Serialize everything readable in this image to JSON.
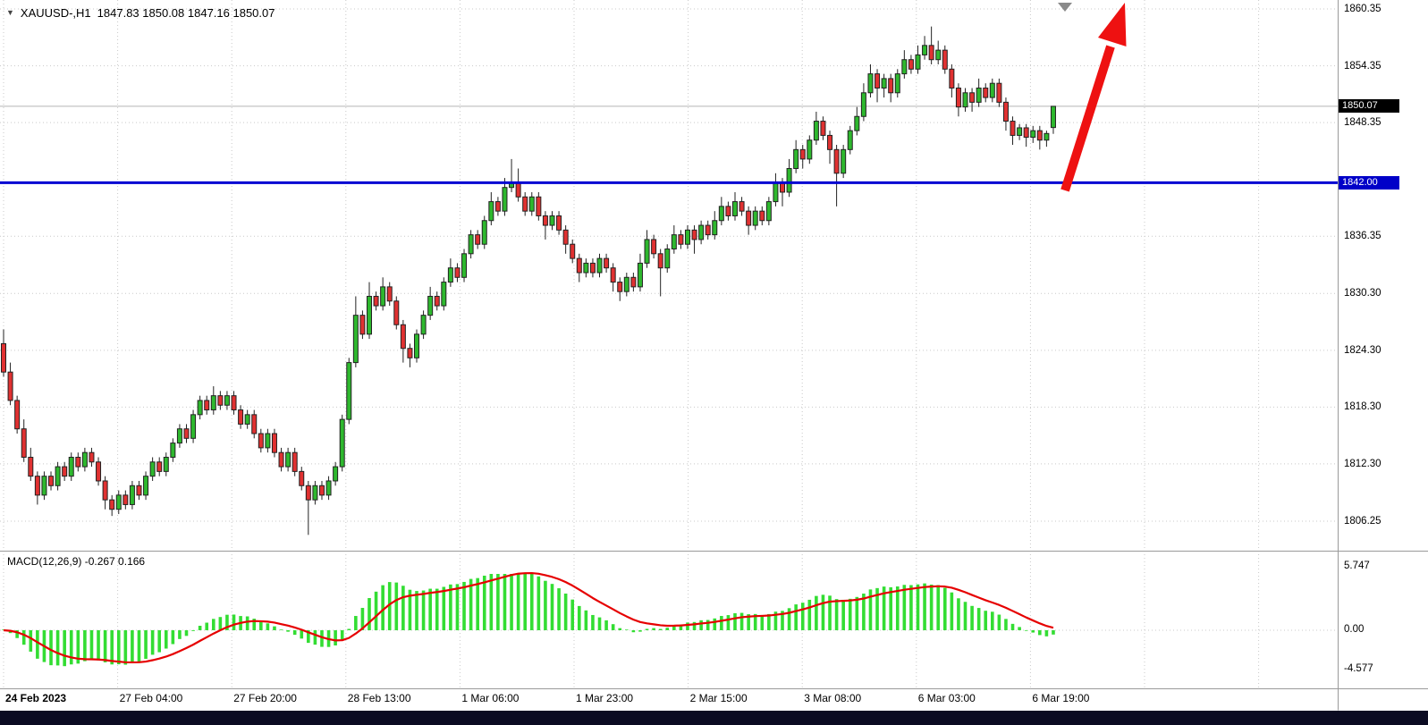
{
  "header": {
    "dropdown_icon": "▼",
    "symbol": "XAUUSD-,H1",
    "ohlc": "1847.83 1850.08 1847.16 1850.07"
  },
  "macd": {
    "label": "MACD(12,26,9) -0.267 0.166"
  },
  "price_axis": {
    "ticks": [
      1860.35,
      1854.35,
      1848.35,
      1836.35,
      1830.3,
      1824.3,
      1818.3,
      1812.3,
      1806.25
    ],
    "current_text": "1850.07",
    "level_text": "1842.00"
  },
  "time_axis": {
    "ticks": [
      "24 Feb 2023",
      "27 Feb 04:00",
      "27 Feb 20:00",
      "28 Feb 13:00",
      "1 Mar 06:00",
      "1 Mar 23:00",
      "2 Mar 15:00",
      "3 Mar 08:00",
      "6 Mar 03:00",
      "6 Mar 19:00"
    ]
  },
  "macd_axis": {
    "ticks": [
      "5.747",
      "0.00",
      "-4.577"
    ]
  },
  "colors": {
    "up": "#2eb82e",
    "down": "#e03131",
    "wick": "#222222",
    "hline": "#0000d2",
    "signal": "#e60000",
    "histogram": "#33dd33",
    "grid": "#c9c9c9",
    "badge_current_bg": "#000000",
    "badge_level_bg": "#0000c8",
    "arrow": "#ee1111",
    "bottom_strip": "#0b0b22",
    "current_price_line": "#b4b4b4"
  },
  "chart_data": [
    {
      "type": "candlestick",
      "symbol": "XAUUSD-",
      "timeframe": "H1",
      "current_bar": {
        "open": 1847.83,
        "high": 1850.08,
        "low": 1847.16,
        "close": 1850.07
      },
      "y_axis_ticks": [
        1860.35,
        1854.35,
        1848.35,
        1836.35,
        1830.3,
        1824.3,
        1818.3,
        1812.3,
        1806.25
      ],
      "x_axis_ticks": [
        "24 Feb 2023",
        "27 Feb 04:00",
        "27 Feb 20:00",
        "28 Feb 13:00",
        "1 Mar 06:00",
        "1 Mar 23:00",
        "2 Mar 15:00",
        "3 Mar 08:00",
        "6 Mar 03:00",
        "6 Mar 19:00"
      ],
      "drawings": [
        {
          "type": "horizontal_line",
          "price": 1842.0
        },
        {
          "type": "arrow_up"
        }
      ],
      "candles": [
        [
          1825,
          1826.5,
          1821.5,
          1822
        ],
        [
          1822,
          1823,
          1818.5,
          1819
        ],
        [
          1819,
          1819.5,
          1815.5,
          1816
        ],
        [
          1816,
          1817,
          1812.5,
          1813
        ],
        [
          1813,
          1814,
          1810.5,
          1811
        ],
        [
          1811,
          1811.5,
          1808,
          1809
        ],
        [
          1809,
          1811.5,
          1808.5,
          1811
        ],
        [
          1811,
          1811.5,
          1809.5,
          1810
        ],
        [
          1810,
          1812.5,
          1809.5,
          1812
        ],
        [
          1812,
          1812.5,
          1810.5,
          1811
        ],
        [
          1811,
          1813.5,
          1810.5,
          1813
        ],
        [
          1813,
          1813.5,
          1811.5,
          1812
        ],
        [
          1812,
          1814,
          1811.5,
          1813.5
        ],
        [
          1813.5,
          1814,
          1812,
          1812.5
        ],
        [
          1812.5,
          1813,
          1810,
          1810.5
        ],
        [
          1810.5,
          1811,
          1807.5,
          1808.5
        ],
        [
          1808.5,
          1809,
          1806.8,
          1807.5
        ],
        [
          1807.5,
          1809.5,
          1807,
          1809
        ],
        [
          1809,
          1809.5,
          1807.5,
          1808
        ],
        [
          1808,
          1810.5,
          1807.5,
          1810
        ],
        [
          1810,
          1810.5,
          1808.5,
          1809
        ],
        [
          1809,
          1811.5,
          1808.5,
          1811
        ],
        [
          1811,
          1813,
          1810.5,
          1812.5
        ],
        [
          1812.5,
          1813,
          1811,
          1811.5
        ],
        [
          1811.5,
          1813.5,
          1811,
          1813
        ],
        [
          1813,
          1815,
          1812.5,
          1814.5
        ],
        [
          1814.5,
          1816.5,
          1814,
          1816
        ],
        [
          1816,
          1816.5,
          1814.5,
          1815
        ],
        [
          1815,
          1818,
          1814.5,
          1817.5
        ],
        [
          1817.5,
          1819.5,
          1817,
          1819
        ],
        [
          1819,
          1819.5,
          1817.5,
          1818
        ],
        [
          1818,
          1820.5,
          1817.5,
          1819.5
        ],
        [
          1819.5,
          1820,
          1818,
          1818.5
        ],
        [
          1818.5,
          1820,
          1818,
          1819.5
        ],
        [
          1819.5,
          1820,
          1817.5,
          1818
        ],
        [
          1818,
          1818.5,
          1816,
          1816.5
        ],
        [
          1816.5,
          1818,
          1816,
          1817.5
        ],
        [
          1817.5,
          1818,
          1815,
          1815.5
        ],
        [
          1815.5,
          1816,
          1813.5,
          1814
        ],
        [
          1814,
          1816,
          1813.5,
          1815.5
        ],
        [
          1815.5,
          1816,
          1813,
          1813.5
        ],
        [
          1813.5,
          1814,
          1811.5,
          1812
        ],
        [
          1812,
          1814,
          1811.5,
          1813.5
        ],
        [
          1813.5,
          1814,
          1811,
          1811.5
        ],
        [
          1811.5,
          1812,
          1809.5,
          1810
        ],
        [
          1810,
          1810.5,
          1804.8,
          1808.5
        ],
        [
          1808.5,
          1810.5,
          1808,
          1810
        ],
        [
          1810,
          1810.5,
          1808.5,
          1809
        ],
        [
          1809,
          1811,
          1808.5,
          1810.5
        ],
        [
          1810.5,
          1812.5,
          1810,
          1812
        ],
        [
          1812,
          1817.5,
          1811.5,
          1817
        ],
        [
          1817,
          1823.5,
          1816.5,
          1823
        ],
        [
          1823,
          1830,
          1822.5,
          1828
        ],
        [
          1828,
          1828.5,
          1825.5,
          1826
        ],
        [
          1826,
          1831.5,
          1825.5,
          1830
        ],
        [
          1830,
          1830.5,
          1828.5,
          1829
        ],
        [
          1829,
          1832,
          1828.5,
          1831
        ],
        [
          1831,
          1831.5,
          1829,
          1829.5
        ],
        [
          1829.5,
          1830,
          1826.5,
          1827
        ],
        [
          1827,
          1827.5,
          1823,
          1824.5
        ],
        [
          1824.5,
          1825,
          1822.5,
          1823.5
        ],
        [
          1823.5,
          1826.5,
          1823,
          1826
        ],
        [
          1826,
          1828.5,
          1825.5,
          1828
        ],
        [
          1828,
          1831,
          1827.5,
          1830
        ],
        [
          1830,
          1830.5,
          1828.5,
          1829
        ],
        [
          1829,
          1832,
          1828.5,
          1831.5
        ],
        [
          1831.5,
          1834,
          1831,
          1833
        ],
        [
          1833,
          1833.5,
          1831.5,
          1832
        ],
        [
          1832,
          1835,
          1831.5,
          1834.5
        ],
        [
          1834.5,
          1837,
          1834,
          1836.5
        ],
        [
          1836.5,
          1837,
          1835,
          1835.5
        ],
        [
          1835.5,
          1838.5,
          1835,
          1838
        ],
        [
          1838,
          1841,
          1837.5,
          1840
        ],
        [
          1840,
          1840.5,
          1838.5,
          1839
        ],
        [
          1839,
          1842.5,
          1838.5,
          1841.5
        ],
        [
          1841.5,
          1844.5,
          1841,
          1842
        ],
        [
          1842,
          1843.5,
          1840,
          1840.5
        ],
        [
          1840.5,
          1841,
          1838.5,
          1839
        ],
        [
          1839,
          1841,
          1838.5,
          1840.5
        ],
        [
          1840.5,
          1841,
          1838,
          1838.5
        ],
        [
          1838.5,
          1839,
          1836,
          1837.5
        ],
        [
          1837.5,
          1839,
          1837,
          1838.5
        ],
        [
          1838.5,
          1839,
          1836.5,
          1837
        ],
        [
          1837,
          1837.5,
          1834.5,
          1835.5
        ],
        [
          1835.5,
          1836,
          1833.5,
          1834
        ],
        [
          1834,
          1834.5,
          1831.5,
          1832.5
        ],
        [
          1832.5,
          1834,
          1832,
          1833.5
        ],
        [
          1833.5,
          1834,
          1832,
          1832.5
        ],
        [
          1832.5,
          1834.5,
          1832,
          1834
        ],
        [
          1834,
          1834.5,
          1832.5,
          1833
        ],
        [
          1833,
          1833.5,
          1830.5,
          1831.5
        ],
        [
          1831.5,
          1832,
          1829.5,
          1830.5
        ],
        [
          1830.5,
          1832.5,
          1830,
          1832
        ],
        [
          1832,
          1832.5,
          1830.5,
          1831
        ],
        [
          1831,
          1834.5,
          1830.5,
          1833.5
        ],
        [
          1833.5,
          1837,
          1833,
          1836
        ],
        [
          1836,
          1836.5,
          1834,
          1834.5
        ],
        [
          1834.5,
          1835,
          1830,
          1833
        ],
        [
          1833,
          1835.5,
          1832.5,
          1835
        ],
        [
          1835,
          1837.5,
          1834.5,
          1836.5
        ],
        [
          1836.5,
          1837,
          1835,
          1835.5
        ],
        [
          1835.5,
          1837.5,
          1835,
          1837
        ],
        [
          1837,
          1837.5,
          1834.5,
          1836
        ],
        [
          1836,
          1838,
          1835.5,
          1837.5
        ],
        [
          1837.5,
          1838,
          1836,
          1836.5
        ],
        [
          1836.5,
          1839,
          1836,
          1838
        ],
        [
          1838,
          1840.5,
          1837.5,
          1839.5
        ],
        [
          1839.5,
          1840,
          1838,
          1838.5
        ],
        [
          1838.5,
          1841,
          1838,
          1840
        ],
        [
          1840,
          1840.5,
          1838.5,
          1839
        ],
        [
          1839,
          1839.5,
          1836.5,
          1837.5
        ],
        [
          1837.5,
          1839.5,
          1837,
          1839
        ],
        [
          1839,
          1839.5,
          1837.5,
          1838
        ],
        [
          1838,
          1840.5,
          1837.5,
          1840
        ],
        [
          1840,
          1843,
          1839.5,
          1842
        ],
        [
          1842,
          1842.5,
          1839.5,
          1841
        ],
        [
          1841,
          1844.5,
          1840.5,
          1843.5
        ],
        [
          1843.5,
          1846.5,
          1843,
          1845.5
        ],
        [
          1845.5,
          1846,
          1843.5,
          1844.5
        ],
        [
          1844.5,
          1847,
          1844,
          1846.5
        ],
        [
          1846.5,
          1849.5,
          1846,
          1848.5
        ],
        [
          1848.5,
          1849,
          1846.5,
          1847
        ],
        [
          1847,
          1847.5,
          1844,
          1845.5
        ],
        [
          1845.5,
          1846,
          1839.5,
          1843
        ],
        [
          1843,
          1846,
          1842.5,
          1845.5
        ],
        [
          1845.5,
          1848,
          1845,
          1847.5
        ],
        [
          1847.5,
          1850,
          1847,
          1849
        ],
        [
          1849,
          1852.5,
          1848.5,
          1851.5
        ],
        [
          1851.5,
          1854.5,
          1851,
          1853.5
        ],
        [
          1853.5,
          1854,
          1850.5,
          1852
        ],
        [
          1852,
          1853.5,
          1851,
          1853
        ],
        [
          1853,
          1853.5,
          1850.5,
          1851.5
        ],
        [
          1851.5,
          1854,
          1851,
          1853.5
        ],
        [
          1853.5,
          1856,
          1853,
          1855
        ],
        [
          1855,
          1855.5,
          1853.5,
          1854
        ],
        [
          1854,
          1856.5,
          1853.5,
          1855.5
        ],
        [
          1855.5,
          1857.5,
          1855,
          1856.5
        ],
        [
          1856.5,
          1858.5,
          1854.5,
          1855
        ],
        [
          1855,
          1857,
          1854.5,
          1856
        ],
        [
          1856,
          1856.5,
          1853.5,
          1854
        ],
        [
          1854,
          1854.5,
          1851,
          1852
        ],
        [
          1852,
          1852.5,
          1849,
          1850
        ],
        [
          1850,
          1852,
          1849.5,
          1851.5
        ],
        [
          1851.5,
          1852,
          1849.5,
          1850.5
        ],
        [
          1850.5,
          1853,
          1850,
          1852
        ],
        [
          1852,
          1852.5,
          1850.5,
          1851
        ],
        [
          1851,
          1853,
          1850.5,
          1852.5
        ],
        [
          1852.5,
          1853,
          1850,
          1850.5
        ],
        [
          1850.5,
          1851,
          1847.5,
          1848.5
        ],
        [
          1848.5,
          1849,
          1846,
          1847
        ],
        [
          1847,
          1848.2,
          1846.5,
          1847.8
        ],
        [
          1847.8,
          1848.2,
          1845.8,
          1846.8
        ],
        [
          1846.8,
          1848,
          1846.2,
          1847.5
        ],
        [
          1847.5,
          1848,
          1845.5,
          1846.5
        ],
        [
          1846.5,
          1847.5,
          1845.8,
          1847.2
        ],
        [
          1847.83,
          1850.08,
          1847.16,
          1850.07
        ]
      ]
    },
    {
      "type": "bar",
      "name": "MACD(12,26,9)",
      "params": {
        "fast": 12,
        "slow": 26,
        "signal": 9
      },
      "current_values": {
        "macd": -0.267,
        "signal": 0.166
      },
      "ylim": [
        -4.577,
        5.747
      ]
    }
  ]
}
